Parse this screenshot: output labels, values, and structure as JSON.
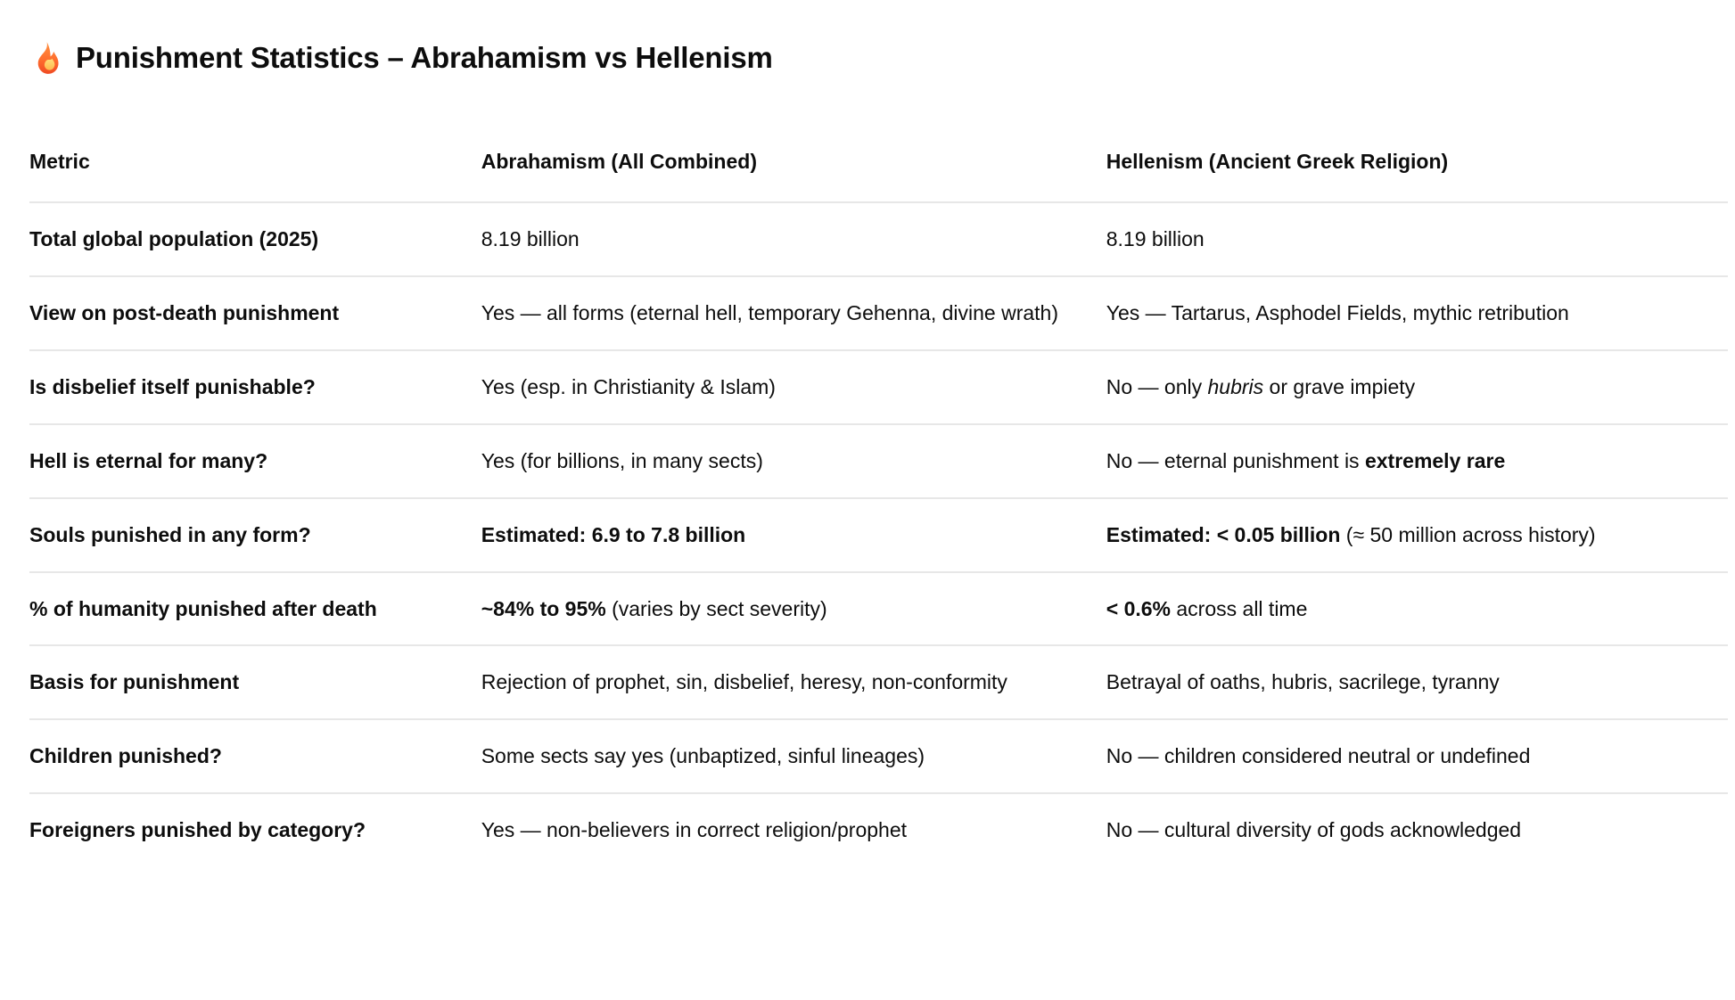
{
  "title": {
    "icon": "fire-icon",
    "text": "Punishment Statistics – Abrahamism vs Hellenism"
  },
  "colors": {
    "text": "#0d0d0d",
    "divider": "#e7e7e7",
    "flame_outer_top": "#ff9241",
    "flame_outer_bottom": "#f04b23",
    "flame_inner": "#ffd86b"
  },
  "table": {
    "columns": [
      "Metric",
      "Abrahamism (All Combined)",
      "Hellenism (Ancient Greek Religion)"
    ],
    "rows": [
      {
        "metric": "Total global population (2025)",
        "abrahamism": [
          {
            "t": "8.19 billion"
          }
        ],
        "hellenism": [
          {
            "t": "8.19 billion"
          }
        ]
      },
      {
        "metric": "View on post-death punishment",
        "abrahamism": [
          {
            "t": "Yes — all forms (eternal hell, temporary Gehenna, divine wrath)"
          }
        ],
        "hellenism": [
          {
            "t": "Yes — Tartarus, Asphodel Fields, mythic retribution"
          }
        ]
      },
      {
        "metric": "Is disbelief itself punishable?",
        "abrahamism": [
          {
            "t": "Yes (esp. in Christianity & Islam)"
          }
        ],
        "hellenism": [
          {
            "t": "No — only "
          },
          {
            "t": "hubris",
            "i": true
          },
          {
            "t": " or grave impiety"
          }
        ]
      },
      {
        "metric": "Hell is eternal for many?",
        "abrahamism": [
          {
            "t": "Yes (for billions, in many sects)"
          }
        ],
        "hellenism": [
          {
            "t": "No — eternal punishment is "
          },
          {
            "t": "extremely rare",
            "b": true
          }
        ]
      },
      {
        "metric": "Souls punished in any form?",
        "abrahamism": [
          {
            "t": "Estimated: 6.9 to 7.8 billion",
            "b": true
          }
        ],
        "hellenism": [
          {
            "t": "Estimated: < 0.05 billion",
            "b": true
          },
          {
            "t": " (≈ 50 million across history)"
          }
        ]
      },
      {
        "metric": "% of humanity punished after death",
        "abrahamism": [
          {
            "t": "~84% to 95%",
            "b": true
          },
          {
            "t": " (varies by sect severity)"
          }
        ],
        "hellenism": [
          {
            "t": "< 0.6%",
            "b": true
          },
          {
            "t": " across all time"
          }
        ]
      },
      {
        "metric": "Basis for punishment",
        "abrahamism": [
          {
            "t": "Rejection of prophet, sin, disbelief, heresy, non-conformity"
          }
        ],
        "hellenism": [
          {
            "t": "Betrayal of oaths, hubris, sacrilege, tyranny"
          }
        ]
      },
      {
        "metric": "Children punished?",
        "abrahamism": [
          {
            "t": "Some sects say yes (unbaptized, sinful lineages)"
          }
        ],
        "hellenism": [
          {
            "t": "No — children considered neutral or undefined"
          }
        ]
      },
      {
        "metric": "Foreigners punished by category?",
        "abrahamism": [
          {
            "t": "Yes — non-believers in correct religion/prophet"
          }
        ],
        "hellenism": [
          {
            "t": "No — cultural diversity of gods acknowledged"
          }
        ]
      }
    ]
  }
}
